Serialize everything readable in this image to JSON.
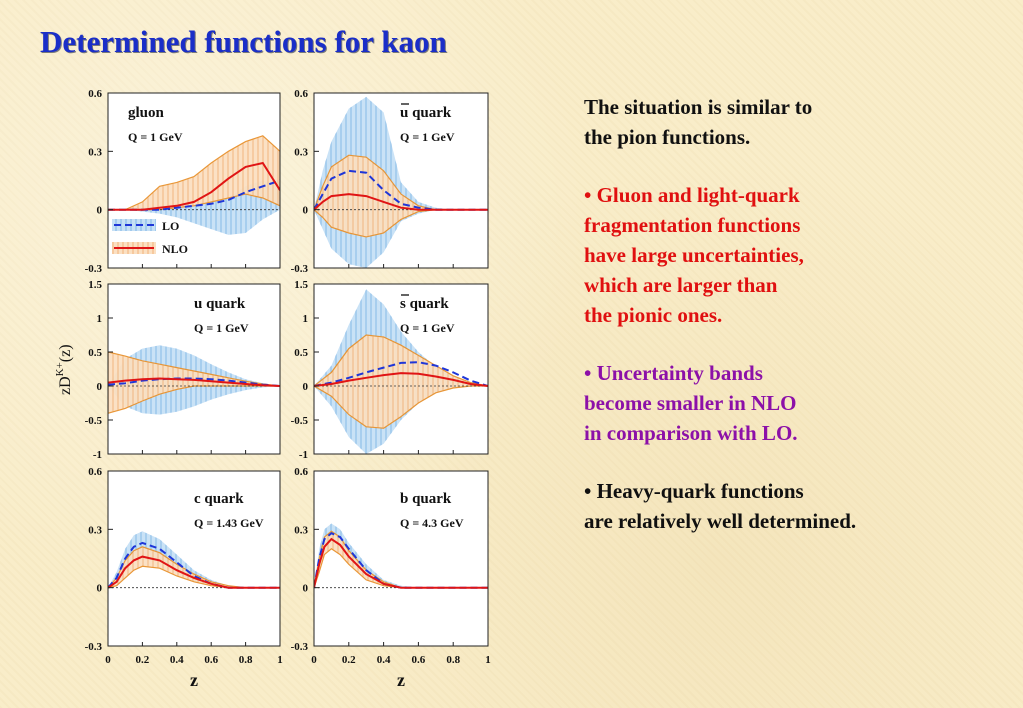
{
  "slide": {
    "title": "Determined functions for kaon",
    "paragraphs": [
      {
        "text": "The situation is similar to\nthe pion functions.",
        "color": "#101010"
      },
      {
        "text": "• Gluon and light-quark\n  fragmentation functions\n  have large uncertainties,\n  which are larger than\n  the pionic ones.",
        "color": "#e01010"
      },
      {
        "text": "• Uncertainty bands\n   become smaller in NLO\n   in comparison with LO.",
        "color": "#8c10a8"
      },
      {
        "text": "• Heavy-quark functions\n  are relatively well determined.",
        "color": "#101010"
      }
    ]
  },
  "chart_data": {
    "type": "line",
    "ylabel": "zD^{K+}(z)",
    "xlabel": "z",
    "x_ticks": [
      "0",
      "0.2",
      "0.4",
      "0.6",
      "0.8",
      "1"
    ],
    "colors": {
      "lo_band": "#a8cff0",
      "nlo_band": "#f7c08a",
      "nlo_band_edge": "#e8922e",
      "lo": "#1f36d8",
      "nlo": "#e01515"
    },
    "legend": {
      "lo": "LO",
      "nlo": "NLO",
      "placement": "bottom-left of gluon panel"
    },
    "panels": [
      {
        "id": "gluon",
        "name": "gluon",
        "overline": false,
        "scale": "Q = 1 GeV",
        "xlim": [
          0,
          1
        ],
        "ylim": [
          -0.3,
          0.6
        ],
        "y_ticks": [
          "0.6",
          "0.3",
          "0",
          "-0.3"
        ],
        "y_tick_values": [
          0.6,
          0.3,
          0,
          -0.3
        ],
        "x": [
          0,
          0.1,
          0.2,
          0.3,
          0.4,
          0.5,
          0.6,
          0.7,
          0.8,
          0.9,
          1.0
        ],
        "lo_lower": [
          0,
          0,
          -0.01,
          -0.02,
          -0.04,
          -0.07,
          -0.1,
          -0.13,
          -0.12,
          -0.05,
          0
        ],
        "lo_upper": [
          0,
          0,
          0.01,
          0.02,
          0.03,
          0.03,
          0.04,
          0.06,
          0.12,
          0.15,
          0.12
        ],
        "nlo_lower": [
          0,
          0,
          0,
          0,
          0.01,
          0.02,
          0.04,
          0.06,
          0.08,
          0.06,
          0.02
        ],
        "nlo_upper": [
          0,
          0,
          0.04,
          0.12,
          0.14,
          0.17,
          0.24,
          0.3,
          0.35,
          0.38,
          0.3
        ],
        "lo": [
          0,
          0,
          0,
          0,
          0.01,
          0.02,
          0.03,
          0.05,
          0.09,
          0.12,
          0.15
        ],
        "nlo": [
          0,
          0,
          0,
          0.01,
          0.02,
          0.04,
          0.09,
          0.16,
          0.22,
          0.24,
          0.1
        ]
      },
      {
        "id": "ubar",
        "name": "u quark",
        "overline": true,
        "scale": "Q = 1 GeV",
        "xlim": [
          0,
          1
        ],
        "ylim": [
          -0.3,
          0.6
        ],
        "y_ticks": [
          "0.6",
          "0.3",
          "0",
          "-0.3"
        ],
        "y_tick_values": [
          0.6,
          0.3,
          0,
          -0.3
        ],
        "x": [
          0,
          0.05,
          0.1,
          0.2,
          0.3,
          0.4,
          0.5,
          0.6,
          0.7,
          0.8,
          0.9,
          1.0
        ],
        "lo_lower": [
          0,
          -0.1,
          -0.2,
          -0.28,
          -0.3,
          -0.22,
          -0.06,
          -0.02,
          0,
          0,
          0,
          0
        ],
        "lo_upper": [
          0,
          0.2,
          0.35,
          0.52,
          0.58,
          0.5,
          0.14,
          0.04,
          0.01,
          0,
          0,
          0
        ],
        "nlo_lower": [
          0,
          -0.04,
          -0.09,
          -0.12,
          -0.14,
          -0.12,
          -0.05,
          -0.01,
          0,
          0,
          0,
          0
        ],
        "nlo_upper": [
          0,
          0.12,
          0.22,
          0.28,
          0.27,
          0.2,
          0.08,
          0.02,
          0,
          0,
          0,
          0
        ],
        "lo": [
          0,
          0.08,
          0.16,
          0.2,
          0.19,
          0.1,
          0.03,
          0.01,
          0,
          0,
          0,
          0
        ],
        "nlo": [
          0,
          0.04,
          0.07,
          0.08,
          0.07,
          0.04,
          0.01,
          0,
          0,
          0,
          0,
          0
        ]
      },
      {
        "id": "u",
        "name": "u quark",
        "overline": false,
        "scale": "Q = 1 GeV",
        "xlim": [
          0,
          1
        ],
        "ylim": [
          -1,
          1.5
        ],
        "y_ticks": [
          "1.5",
          "1",
          "0.5",
          "0",
          "-0.5",
          "-1"
        ],
        "y_tick_values": [
          1.5,
          1,
          0.5,
          0,
          -0.5,
          -1
        ],
        "x": [
          0,
          0.1,
          0.2,
          0.3,
          0.4,
          0.5,
          0.6,
          0.7,
          0.8,
          0.9,
          1.0
        ],
        "lo_lower": [
          0,
          -0.3,
          -0.4,
          -0.42,
          -0.38,
          -0.3,
          -0.2,
          -0.12,
          -0.06,
          -0.02,
          0
        ],
        "lo_upper": [
          0,
          0.4,
          0.55,
          0.6,
          0.55,
          0.45,
          0.32,
          0.2,
          0.1,
          0.04,
          0
        ],
        "nlo_lower": [
          -0.4,
          -0.33,
          -0.22,
          -0.12,
          -0.05,
          0,
          0,
          0,
          0,
          0,
          0
        ],
        "nlo_upper": [
          0.5,
          0.44,
          0.37,
          0.32,
          0.27,
          0.22,
          0.17,
          0.12,
          0.07,
          0.03,
          0
        ],
        "lo": [
          0.02,
          0.04,
          0.08,
          0.1,
          0.11,
          0.11,
          0.1,
          0.08,
          0.05,
          0.02,
          0
        ],
        "nlo": [
          0.05,
          0.08,
          0.1,
          0.11,
          0.1,
          0.09,
          0.07,
          0.05,
          0.03,
          0.01,
          0
        ]
      },
      {
        "id": "sbar",
        "name": "s quark",
        "overline": true,
        "scale": "Q = 1 GeV",
        "xlim": [
          0,
          1
        ],
        "ylim": [
          -1,
          1.5
        ],
        "y_ticks": [
          "1.5",
          "1",
          "0.5",
          "0",
          "-0.5",
          "-1"
        ],
        "y_tick_values": [
          1.5,
          1,
          0.5,
          0,
          -0.5,
          -1
        ],
        "x": [
          0,
          0.1,
          0.2,
          0.3,
          0.4,
          0.5,
          0.6,
          0.7,
          0.8,
          0.9,
          1.0
        ],
        "lo_lower": [
          0,
          -0.3,
          -0.75,
          -1.0,
          -0.85,
          -0.5,
          -0.25,
          -0.1,
          -0.03,
          0,
          0
        ],
        "lo_upper": [
          0,
          0.3,
          0.9,
          1.42,
          1.2,
          0.8,
          0.5,
          0.28,
          0.12,
          0.03,
          0
        ],
        "nlo_lower": [
          0,
          -0.15,
          -0.42,
          -0.6,
          -0.62,
          -0.45,
          -0.25,
          -0.1,
          -0.03,
          0,
          0
        ],
        "nlo_upper": [
          0,
          0.2,
          0.55,
          0.75,
          0.72,
          0.6,
          0.45,
          0.3,
          0.15,
          0.05,
          0
        ],
        "lo": [
          0,
          0.05,
          0.12,
          0.2,
          0.27,
          0.34,
          0.35,
          0.3,
          0.2,
          0.08,
          0
        ],
        "nlo": [
          0,
          0.03,
          0.08,
          0.12,
          0.16,
          0.19,
          0.18,
          0.14,
          0.09,
          0.03,
          0
        ]
      },
      {
        "id": "c",
        "name": "c quark",
        "overline": false,
        "scale": "Q = 1.43 GeV",
        "xlim": [
          0,
          1
        ],
        "ylim": [
          -0.3,
          0.6
        ],
        "y_ticks": [
          "0.6",
          "0.3",
          "0",
          "-0.3"
        ],
        "y_tick_values": [
          0.6,
          0.3,
          0,
          -0.3
        ],
        "x": [
          0,
          0.05,
          0.1,
          0.15,
          0.2,
          0.3,
          0.4,
          0.5,
          0.6,
          0.7,
          0.8,
          0.9,
          1.0
        ],
        "lo_lower": [
          0,
          0.02,
          0.1,
          0.15,
          0.17,
          0.14,
          0.08,
          0.03,
          0.01,
          0,
          0,
          0,
          0
        ],
        "lo_upper": [
          0,
          0.08,
          0.2,
          0.27,
          0.29,
          0.25,
          0.17,
          0.09,
          0.04,
          0.01,
          0,
          0,
          0
        ],
        "nlo_lower": [
          0,
          0.01,
          0.05,
          0.09,
          0.11,
          0.1,
          0.06,
          0.03,
          0.01,
          0,
          0,
          0,
          0
        ],
        "nlo_upper": [
          0,
          0.05,
          0.14,
          0.19,
          0.21,
          0.18,
          0.12,
          0.07,
          0.03,
          0.01,
          0,
          0,
          0
        ],
        "lo": [
          0,
          0.05,
          0.15,
          0.21,
          0.23,
          0.2,
          0.13,
          0.06,
          0.02,
          0,
          0,
          0,
          0
        ],
        "nlo": [
          0,
          0.03,
          0.1,
          0.14,
          0.16,
          0.14,
          0.09,
          0.05,
          0.02,
          0,
          0,
          0,
          0
        ]
      },
      {
        "id": "b",
        "name": "b quark",
        "overline": false,
        "scale": "Q = 4.3 GeV",
        "xlim": [
          0,
          1
        ],
        "ylim": [
          -0.3,
          0.6
        ],
        "y_ticks": [
          "0.6",
          "0.3",
          "0",
          "-0.3"
        ],
        "y_tick_values": [
          0.6,
          0.3,
          0,
          -0.3
        ],
        "x": [
          0,
          0.03,
          0.06,
          0.1,
          0.15,
          0.2,
          0.3,
          0.4,
          0.5,
          0.6,
          0.7,
          0.8,
          0.9,
          1.0
        ],
        "lo_lower": [
          0,
          0.1,
          0.2,
          0.24,
          0.21,
          0.15,
          0.06,
          0.01,
          0,
          0,
          0,
          0,
          0,
          0
        ],
        "lo_upper": [
          0,
          0.2,
          0.3,
          0.33,
          0.3,
          0.23,
          0.12,
          0.04,
          0.01,
          0,
          0,
          0,
          0,
          0
        ],
        "nlo_lower": [
          0,
          0.08,
          0.17,
          0.2,
          0.17,
          0.12,
          0.04,
          0.01,
          0,
          0,
          0,
          0,
          0,
          0
        ],
        "nlo_upper": [
          0,
          0.15,
          0.26,
          0.29,
          0.26,
          0.19,
          0.09,
          0.03,
          0,
          0,
          0,
          0,
          0,
          0
        ],
        "lo": [
          0,
          0.15,
          0.25,
          0.28,
          0.26,
          0.2,
          0.09,
          0.02,
          0,
          0,
          0,
          0,
          0,
          0
        ],
        "nlo": [
          0,
          0.12,
          0.21,
          0.25,
          0.22,
          0.16,
          0.07,
          0.02,
          0,
          0,
          0,
          0,
          0,
          0
        ]
      }
    ]
  }
}
